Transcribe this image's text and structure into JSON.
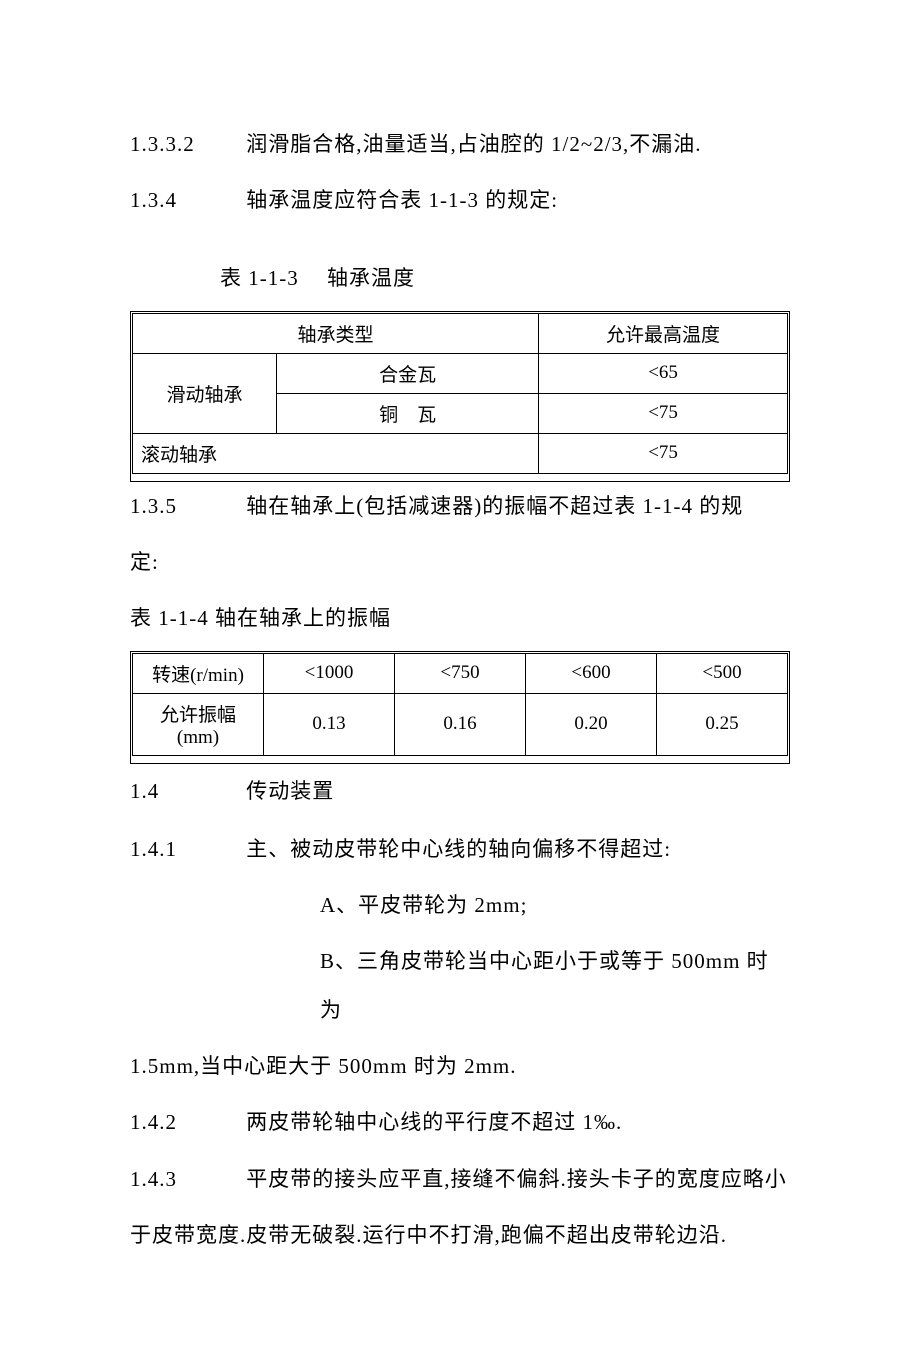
{
  "p1": {
    "num": "1.3.3.2",
    "text": "润滑脂合格,油量适当,占油腔的 1/2~2/3,不漏油."
  },
  "p2": {
    "num": "1.3.4",
    "text": "轴承温度应符合表 1-1-3 的规定:"
  },
  "t1": {
    "caption": "表 1-1-3  轴承温度",
    "head": {
      "c1": "轴承类型",
      "c2": "允许最高温度"
    },
    "rows": {
      "r1c1": "滑动轴承",
      "r1c2": "合金瓦",
      "r1c3": "<65",
      "r2c2": "铜 瓦",
      "r2c3": "<75",
      "r3c1": "滚动轴承",
      "r3c3": "<75"
    }
  },
  "p3a": {
    "num": "1.3.5",
    "text": "轴在轴承上(包括减速器)的振幅不超过表 1-1-4 的规"
  },
  "p3b": "定:",
  "t2": {
    "caption": "表 1-1-4 轴在轴承上的振幅",
    "r1": {
      "c1": "转速(r/min)",
      "c2": "<1000",
      "c3": "<750",
      "c4": "<600",
      "c5": "<500"
    },
    "r2": {
      "c1": "允许振幅(mm)",
      "c2": "0.13",
      "c3": "0.16",
      "c4": "0.20",
      "c5": "0.25"
    }
  },
  "sec": {
    "num": "1.4",
    "title": "传动装置"
  },
  "p4": {
    "num": "1.4.1",
    "text": "主、被动皮带轮中心线的轴向偏移不得超过:"
  },
  "p5": "A、平皮带轮为 2mm;",
  "p6": "B、三角皮带轮当中心距小于或等于 500mm 时为",
  "p6b": "1.5mm,当中心距大于 500mm 时为 2mm.",
  "p7": {
    "num": "1.4.2",
    "text": "两皮带轮轴中心线的平行度不超过 1‰."
  },
  "p8": {
    "num": "1.4.3",
    "text": "平皮带的接头应平直,接缝不偏斜.接头卡子的宽度应略小"
  },
  "p8b": "于皮带宽度.皮带无破裂.运行中不打滑,跑偏不超出皮带轮边沿.",
  "style": {
    "background_color": "#ffffff",
    "text_color": "#000000",
    "border_color": "#000000",
    "body_fontsize_pt": 16,
    "table_fontsize_pt": 14
  }
}
